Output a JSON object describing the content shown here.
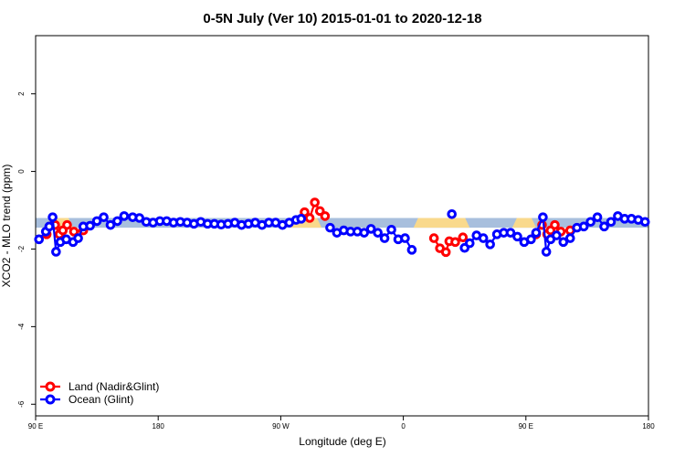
{
  "chart_data": {
    "type": "line",
    "title": "0-5N July (Ver 10)   2015-01-01 to 2020-12-18",
    "xlabel": "Longitude (deg E)",
    "ylabel": "XCO2 - MLO trend (ppm)",
    "xlim": [
      90,
      450
    ],
    "ylim": [
      -6.3,
      3.5
    ],
    "x_ticks": [
      {
        "value": 90,
        "label": "90 E"
      },
      {
        "value": 162,
        "label": "180"
      },
      {
        "value": 234,
        "label": "90 W"
      },
      {
        "value": 306,
        "label": "0"
      },
      {
        "value": 378,
        "label": "90 E"
      },
      {
        "value": 450,
        "label": "180"
      }
    ],
    "y_ticks": [
      {
        "value": 2,
        "label": "2"
      },
      {
        "value": 0,
        "label": "0"
      },
      {
        "value": -2,
        "label": "-2"
      },
      {
        "value": -4,
        "label": "-4"
      },
      {
        "value": -6,
        "label": "-6"
      }
    ],
    "band": {
      "y_low": -1.45,
      "y_high": -1.2,
      "ocean_color": "#a8bfdd",
      "land_color": "#f9d98c",
      "land_segments": [
        [
          96,
          112
        ],
        [
          240,
          258
        ],
        [
          312,
          345
        ],
        [
          370,
          384
        ]
      ]
    },
    "legend": {
      "position": "bottom-left",
      "entries": [
        "Land (Nadir&Glint)",
        "Ocean (Glint)"
      ]
    },
    "series": [
      {
        "name": "Land (Nadir&Glint)",
        "color": "#ff0000",
        "segments": [
          [
            [
              96.5,
              -1.62
            ],
            [
              101.5,
              -1.38
            ],
            [
              104,
              -1.62
            ],
            [
              106,
              -1.52
            ],
            [
              108.5,
              -1.38
            ],
            [
              112.5,
              -1.55
            ],
            [
              118,
              -1.52
            ]
          ],
          [
            [
              248,
              -1.05
            ],
            [
              251,
              -1.2
            ],
            [
              254,
              -0.8
            ],
            [
              257,
              -1.02
            ],
            [
              260,
              -1.15
            ]
          ],
          [
            [
              324,
              -1.72
            ],
            [
              327.5,
              -1.98
            ],
            [
              331,
              -2.08
            ],
            [
              333,
              -1.8
            ],
            [
              336.5,
              -1.82
            ],
            [
              341,
              -1.7
            ]
          ],
          [
            [
              384,
              -1.62
            ],
            [
              387.5,
              -1.38
            ],
            [
              390.5,
              -1.62
            ],
            [
              392.5,
              -1.52
            ],
            [
              395,
              -1.38
            ],
            [
              398.5,
              -1.55
            ],
            [
              404,
              -1.52
            ]
          ]
        ]
      },
      {
        "name": "Ocean (Glint)",
        "color": "#0000ff",
        "segments": [
          [
            [
              92,
              -1.75
            ],
            [
              96,
              -1.55
            ],
            [
              98,
              -1.42
            ],
            [
              100,
              -1.18
            ],
            [
              102,
              -2.07
            ],
            [
              104.5,
              -1.82
            ],
            [
              108,
              -1.75
            ],
            [
              112,
              -1.82
            ],
            [
              115,
              -1.72
            ],
            [
              118,
              -1.42
            ],
            [
              122,
              -1.4
            ],
            [
              126,
              -1.28
            ],
            [
              130,
              -1.18
            ],
            [
              134,
              -1.38
            ],
            [
              138,
              -1.28
            ],
            [
              142,
              -1.15
            ],
            [
              147,
              -1.18
            ],
            [
              151,
              -1.2
            ],
            [
              155,
              -1.3
            ],
            [
              159,
              -1.32
            ],
            [
              163,
              -1.28
            ],
            [
              167,
              -1.28
            ],
            [
              171,
              -1.32
            ],
            [
              175,
              -1.3
            ],
            [
              179,
              -1.32
            ],
            [
              183,
              -1.35
            ],
            [
              187,
              -1.3
            ],
            [
              191,
              -1.35
            ],
            [
              195,
              -1.35
            ],
            [
              199,
              -1.37
            ],
            [
              203,
              -1.35
            ],
            [
              207,
              -1.32
            ],
            [
              211,
              -1.38
            ],
            [
              215,
              -1.35
            ],
            [
              219,
              -1.32
            ],
            [
              223,
              -1.38
            ],
            [
              227,
              -1.32
            ],
            [
              231,
              -1.32
            ],
            [
              235,
              -1.38
            ],
            [
              239,
              -1.32
            ],
            [
              243,
              -1.25
            ],
            [
              246,
              -1.22
            ]
          ],
          [
            [
              263,
              -1.45
            ],
            [
              267,
              -1.58
            ],
            [
              271,
              -1.52
            ],
            [
              275,
              -1.55
            ],
            [
              279,
              -1.55
            ],
            [
              283,
              -1.58
            ],
            [
              287,
              -1.48
            ],
            [
              291,
              -1.58
            ],
            [
              295,
              -1.72
            ],
            [
              299,
              -1.5
            ],
            [
              303,
              -1.75
            ],
            [
              307,
              -1.72
            ],
            [
              311,
              -2.02
            ]
          ],
          [
            [
              334.5,
              -1.1
            ]
          ],
          [
            [
              342,
              -1.97
            ],
            [
              345,
              -1.85
            ],
            [
              349,
              -1.65
            ],
            [
              353,
              -1.72
            ],
            [
              357,
              -1.88
            ],
            [
              361,
              -1.62
            ],
            [
              365,
              -1.58
            ],
            [
              369,
              -1.58
            ],
            [
              373,
              -1.68
            ],
            [
              377,
              -1.82
            ],
            [
              381,
              -1.75
            ],
            [
              384,
              -1.58
            ],
            [
              388,
              -1.18
            ],
            [
              390,
              -2.07
            ],
            [
              392.5,
              -1.75
            ],
            [
              396,
              -1.65
            ],
            [
              400,
              -1.82
            ],
            [
              404,
              -1.72
            ],
            [
              408,
              -1.45
            ],
            [
              412,
              -1.42
            ],
            [
              416,
              -1.3
            ],
            [
              420,
              -1.18
            ],
            [
              424,
              -1.42
            ],
            [
              428,
              -1.3
            ],
            [
              432,
              -1.15
            ],
            [
              436,
              -1.22
            ],
            [
              440,
              -1.22
            ],
            [
              444,
              -1.25
            ],
            [
              448,
              -1.3
            ]
          ]
        ]
      }
    ]
  }
}
